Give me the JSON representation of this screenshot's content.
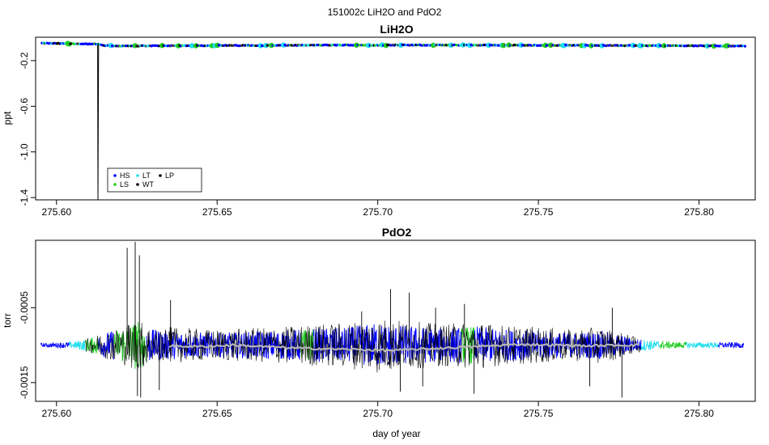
{
  "figure": {
    "title": "151002c   LiH2O and PdO2"
  },
  "chart_data": [
    {
      "type": "scatter",
      "title": "LiH2O",
      "xlabel": "",
      "ylabel": "ppt",
      "xlim": [
        275.5935,
        275.8175
      ],
      "ylim": [
        -1.42,
        0.005
      ],
      "x_ticks": [
        275.6,
        275.65,
        275.7,
        275.75,
        275.8
      ],
      "x_tick_labels": [
        "275.60",
        "275.65",
        "275.70",
        "275.75",
        "275.80"
      ],
      "y_ticks": [
        -0.2,
        -0.6,
        -1.0,
        -1.4
      ],
      "y_tick_labels": [
        "-0.2",
        "-0.6",
        "-1.0",
        "-1.4"
      ],
      "grid": false,
      "legend": {
        "placement": "bottom-left",
        "entries": [
          {
            "label": "HS",
            "color": "#0000ff"
          },
          {
            "label": "LT",
            "color": "#22ddee"
          },
          {
            "label": "LP",
            "color": "#000000"
          },
          {
            "label": "LS",
            "color": "#22cc22"
          },
          {
            "label": "WT",
            "color": "#000000"
          }
        ]
      },
      "series": [
        {
          "points": [
            [
              275.5955,
              -0.047
            ],
            [
              275.6,
              -0.05
            ],
            [
              275.605,
              -0.052
            ],
            [
              275.61,
              -0.054
            ],
            [
              275.6128,
              -0.055
            ],
            [
              275.6129,
              -1.42
            ],
            [
              275.6131,
              -0.058
            ],
            [
              275.615,
              -0.068
            ],
            [
              275.62,
              -0.072
            ],
            [
              275.63,
              -0.07
            ],
            [
              275.64,
              -0.069
            ],
            [
              275.65,
              -0.068
            ],
            [
              275.66,
              -0.067
            ],
            [
              275.67,
              -0.066
            ],
            [
              275.68,
              -0.065
            ],
            [
              275.69,
              -0.064
            ],
            [
              275.7,
              -0.064
            ],
            [
              275.71,
              -0.064
            ],
            [
              275.72,
              -0.064
            ],
            [
              275.73,
              -0.064
            ],
            [
              275.74,
              -0.065
            ],
            [
              275.75,
              -0.066
            ],
            [
              275.76,
              -0.066
            ],
            [
              275.77,
              -0.067
            ],
            [
              275.78,
              -0.068
            ],
            [
              275.79,
              -0.069
            ],
            [
              275.8,
              -0.07
            ],
            [
              275.81,
              -0.071
            ],
            [
              275.8145,
              -0.071
            ]
          ]
        }
      ]
    },
    {
      "type": "line",
      "title": "PdO2",
      "xlabel": "day of year",
      "ylabel": "torr",
      "xlim": [
        275.5935,
        275.8175
      ],
      "ylim": [
        -0.00175,
        0.0004
      ],
      "x_ticks": [
        275.6,
        275.65,
        275.7,
        275.75,
        275.8
      ],
      "x_tick_labels": [
        "275.60",
        "275.65",
        "275.70",
        "275.75",
        "275.80"
      ],
      "y_ticks": [
        -0.0005,
        -0.0015
      ],
      "y_tick_labels": [
        "-0.0005",
        "-0.0015"
      ],
      "grid": false,
      "baseline": -0.001,
      "envelope": [
        [
          275.595,
          3e-05
        ],
        [
          275.605,
          6e-05
        ],
        [
          275.61,
          0.00012
        ],
        [
          275.615,
          0.00022
        ],
        [
          275.62,
          0.0003
        ],
        [
          275.625,
          0.00045
        ],
        [
          275.63,
          0.00028
        ],
        [
          275.64,
          0.00024
        ],
        [
          275.65,
          0.00022
        ],
        [
          275.66,
          0.00024
        ],
        [
          275.67,
          0.00026
        ],
        [
          275.68,
          0.0003
        ],
        [
          275.69,
          0.00032
        ],
        [
          275.7,
          0.0004
        ],
        [
          275.71,
          0.00034
        ],
        [
          275.72,
          0.0003
        ],
        [
          275.73,
          0.00034
        ],
        [
          275.74,
          0.00028
        ],
        [
          275.75,
          0.00026
        ],
        [
          275.76,
          0.00022
        ],
        [
          275.77,
          0.00026
        ],
        [
          275.78,
          0.00012
        ],
        [
          275.79,
          6e-05
        ],
        [
          275.8,
          5e-05
        ],
        [
          275.814,
          5e-05
        ]
      ],
      "spikes": [
        [
          275.6245,
          0.00038
        ],
        [
          275.6252,
          -0.00168
        ],
        [
          275.6258,
          0.0002
        ],
        [
          275.6262,
          -0.0017
        ],
        [
          275.622,
          0.0003
        ],
        [
          275.6355,
          -0.0004
        ],
        [
          275.632,
          -0.0016
        ],
        [
          275.704,
          -0.00025
        ],
        [
          275.707,
          -0.00162
        ],
        [
          275.7098,
          -0.0003
        ],
        [
          275.714,
          -0.00155
        ],
        [
          275.727,
          -0.00045
        ],
        [
          275.73,
          -0.00165
        ],
        [
          275.773,
          -0.0005
        ],
        [
          275.776,
          -0.0017
        ],
        [
          275.695,
          -0.00055
        ],
        [
          275.718,
          -0.0005
        ],
        [
          275.766,
          -0.00155
        ]
      ],
      "segments": [
        {
          "from": 275.595,
          "to": 275.604,
          "color": "#0000ff"
        },
        {
          "from": 275.604,
          "to": 275.609,
          "color": "#22ddee"
        },
        {
          "from": 275.609,
          "to": 275.613,
          "color": "#22cc22"
        },
        {
          "from": 275.613,
          "to": 275.618,
          "color": "#0000ff"
        },
        {
          "from": 275.618,
          "to": 275.628,
          "color": "#22cc22"
        },
        {
          "from": 275.628,
          "to": 275.676,
          "color": "#0000ff"
        },
        {
          "from": 275.676,
          "to": 275.68,
          "color": "#22cc22"
        },
        {
          "from": 275.68,
          "to": 275.726,
          "color": "#0000ff"
        },
        {
          "from": 275.726,
          "to": 275.73,
          "color": "#22cc22"
        },
        {
          "from": 275.73,
          "to": 275.782,
          "color": "#0000ff"
        },
        {
          "from": 275.782,
          "to": 275.788,
          "color": "#22ddee"
        },
        {
          "from": 275.788,
          "to": 275.796,
          "color": "#22cc22"
        },
        {
          "from": 275.796,
          "to": 275.806,
          "color": "#22ddee"
        },
        {
          "from": 275.806,
          "to": 275.814,
          "color": "#0000ff"
        }
      ],
      "black_overlay": {
        "from": 275.635,
        "to": 275.782,
        "color": "#000000"
      },
      "smooth": {
        "color": "#b4b4b4",
        "from": 275.635,
        "to": 275.782,
        "values": [
          [
            275.635,
            -0.00101
          ],
          [
            275.645,
            -0.00102
          ],
          [
            275.655,
            -0.001
          ],
          [
            275.665,
            -0.00102
          ],
          [
            275.675,
            -0.00104
          ],
          [
            275.685,
            -0.00105
          ],
          [
            275.695,
            -0.00106
          ],
          [
            275.705,
            -0.00107
          ],
          [
            275.715,
            -0.00105
          ],
          [
            275.725,
            -0.00103
          ],
          [
            275.735,
            -0.00101
          ],
          [
            275.745,
            -0.00099
          ],
          [
            275.755,
            -0.001
          ],
          [
            275.765,
            -0.00101
          ],
          [
            275.775,
            -0.001
          ],
          [
            275.782,
            -0.001
          ]
        ]
      }
    }
  ]
}
